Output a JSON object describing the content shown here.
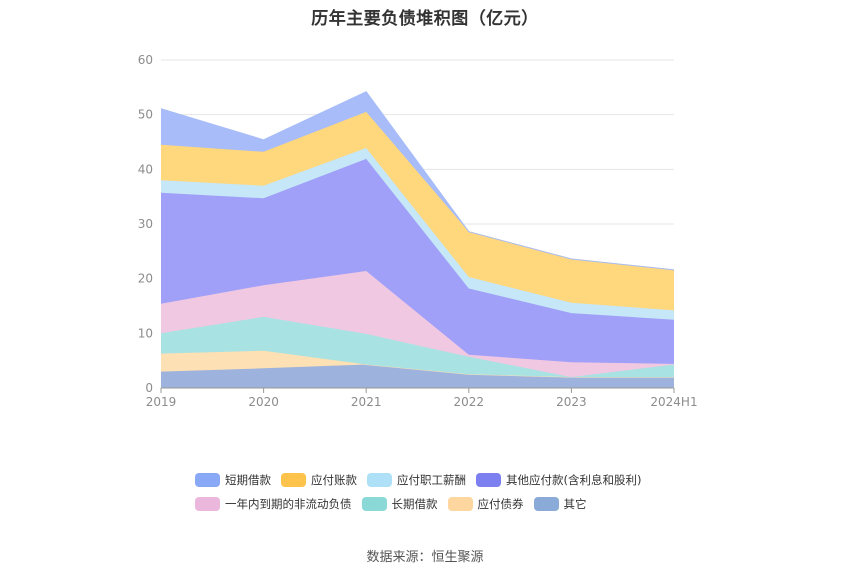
{
  "chart_data": {
    "type": "area",
    "title": "历年主要负债堆积图（亿元）",
    "xlabel": "",
    "ylabel": "",
    "categories": [
      "2019",
      "2020",
      "2021",
      "2022",
      "2023",
      "2024H1"
    ],
    "ylim": [
      0,
      60
    ],
    "yticks": [
      0,
      10,
      20,
      30,
      40,
      50,
      60
    ],
    "grid": true,
    "stacked": true,
    "legend_position": "bottom",
    "series": [
      {
        "name": "其它",
        "color": "#9db3dd",
        "values": [
          3.0,
          3.6,
          4.3,
          2.5,
          2.0,
          2.0
        ]
      },
      {
        "name": "应付债券",
        "color": "#fde0b4",
        "values": [
          3.3,
          3.2,
          0.0,
          0.0,
          0.0,
          0.0
        ]
      },
      {
        "name": "长期借款",
        "color": "#a9e2e2",
        "values": [
          3.7,
          6.2,
          5.6,
          3.2,
          0.0,
          2.3
        ]
      },
      {
        "name": "一年内到期的非流动负债",
        "color": "#f0c8e2",
        "values": [
          5.4,
          5.8,
          11.5,
          0.4,
          2.7,
          0.1
        ]
      },
      {
        "name": "其他应付款(含利息和股利)",
        "color": "#a0a0f8",
        "values": [
          20.3,
          15.9,
          20.5,
          12.1,
          9.0,
          8.1
        ]
      },
      {
        "name": "应付职工薪酬",
        "color": "#c5e7f7",
        "values": [
          2.3,
          2.3,
          2.0,
          2.1,
          1.9,
          1.7
        ]
      },
      {
        "name": "应付账款",
        "color": "#ffd77c",
        "values": [
          6.5,
          6.2,
          6.6,
          8.3,
          8.0,
          7.4
        ]
      },
      {
        "name": "短期借款",
        "color": "#a7bcf8",
        "values": [
          6.6,
          2.2,
          3.7,
          0.0,
          0.0,
          0.0
        ]
      }
    ]
  },
  "legend": {
    "items": [
      {
        "label": "短期借款",
        "color": "#89a8f6"
      },
      {
        "label": "应付账款",
        "color": "#fec34b"
      },
      {
        "label": "应付职工薪酬",
        "color": "#aee0f8"
      },
      {
        "label": "其他应付款(含利息和股利)",
        "color": "#7b7ff0"
      },
      {
        "label": "一年内到期的非流动负债",
        "color": "#ebb7dc"
      },
      {
        "label": "长期借款",
        "color": "#8bd9d6"
      },
      {
        "label": "应付债券",
        "color": "#fed6a0"
      },
      {
        "label": "其它",
        "color": "#8aaad8"
      }
    ]
  },
  "footer": {
    "source": "数据来源：恒生聚源"
  }
}
